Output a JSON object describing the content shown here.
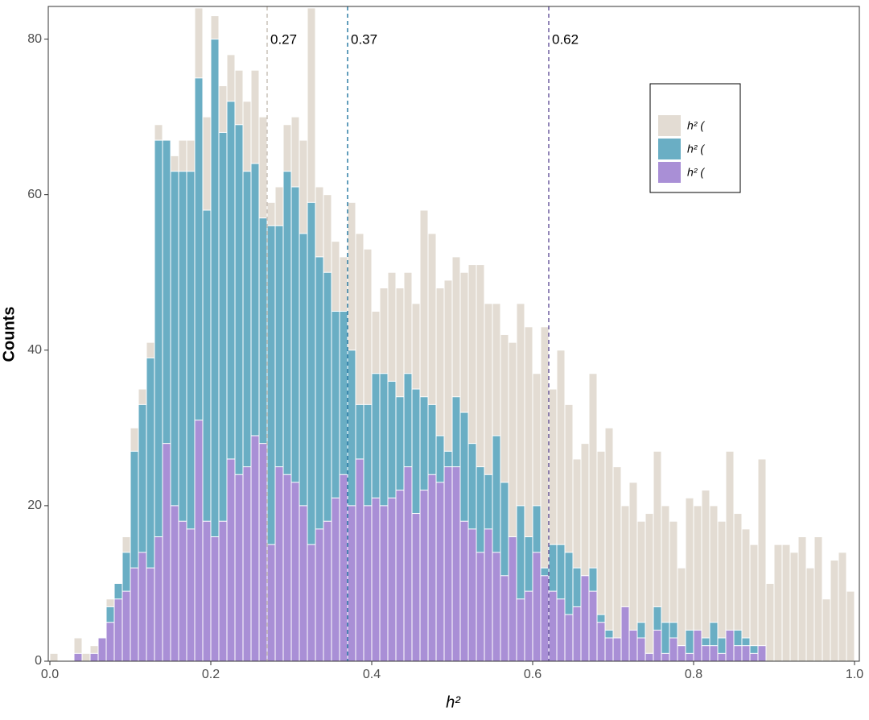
{
  "chart_data": {
    "type": "histogram",
    "x_label": "h²",
    "y_label": "Counts",
    "bins": [
      0,
      0.01,
      0.02,
      0.03,
      0.04,
      0.05,
      0.06,
      0.07,
      0.08,
      0.09,
      0.1,
      0.11,
      0.12,
      0.13,
      0.14,
      0.15,
      0.16,
      0.17,
      0.18,
      0.19,
      0.2,
      0.21,
      0.22,
      0.23,
      0.24,
      0.25,
      0.26,
      0.27,
      0.28,
      0.29,
      0.3,
      0.31,
      0.32,
      0.33,
      0.34,
      0.35,
      0.36,
      0.37,
      0.38,
      0.39,
      0.4,
      0.41,
      0.42,
      0.43,
      0.44,
      0.45,
      0.46,
      0.47,
      0.48,
      0.49,
      0.5,
      0.51,
      0.52,
      0.53,
      0.54,
      0.55,
      0.56,
      0.57,
      0.58,
      0.59,
      0.6,
      0.61,
      0.62,
      0.63,
      0.64,
      0.65,
      0.66,
      0.67,
      0.68,
      0.69,
      0.7,
      0.71,
      0.72,
      0.73,
      0.74,
      0.75,
      0.76,
      0.77,
      0.78,
      0.79,
      0.8,
      0.81,
      0.82,
      0.83,
      0.84,
      0.85,
      0.86,
      0.87,
      0.88,
      0.89,
      0.9,
      0.91,
      0.92,
      0.93,
      0.94,
      0.95,
      0.96,
      0.97,
      0.98,
      0.99,
      1
    ],
    "series": [
      {
        "name": "h² (",
        "color": "#e3dcd3",
        "line_color": "#c9c2b9",
        "vline": 0.27,
        "values": [
          1,
          0,
          0,
          3,
          1,
          2,
          3,
          8,
          10,
          16,
          30,
          35,
          41,
          69,
          67,
          65,
          67,
          67,
          84,
          70,
          83,
          74,
          78,
          76,
          72,
          76,
          70,
          59,
          61,
          69,
          70,
          67,
          84,
          61,
          60,
          54,
          52,
          59,
          55,
          53,
          45,
          48,
          50,
          48,
          50,
          46,
          58,
          55,
          48,
          49,
          52,
          50,
          51,
          51,
          46,
          46,
          42,
          41,
          46,
          43,
          37,
          43,
          35,
          40,
          33,
          26,
          28,
          37,
          27,
          30,
          25,
          20,
          23,
          18,
          19,
          27,
          20,
          18,
          12,
          21,
          20,
          22,
          20,
          18,
          27,
          19,
          17,
          15,
          26,
          10,
          15,
          15,
          14,
          16,
          12,
          16,
          8,
          13,
          14,
          9
        ]
      },
      {
        "name": "h² (",
        "color": "#6aaec4",
        "line_color": "#2e7fa6",
        "vline": 0.37,
        "values": [
          0,
          0,
          0,
          0,
          0,
          0,
          0,
          7,
          10,
          14,
          27,
          33,
          39,
          67,
          67,
          63,
          63,
          63,
          75,
          58,
          80,
          68,
          72,
          69,
          63,
          64,
          57,
          56,
          56,
          63,
          61,
          55,
          59,
          52,
          50,
          45,
          45,
          40,
          33,
          33,
          37,
          37,
          36,
          34,
          37,
          35,
          34,
          33,
          29,
          27,
          34,
          32,
          28,
          25,
          24,
          29,
          23,
          15,
          20,
          16,
          20,
          12,
          15,
          15,
          14,
          12,
          11,
          12,
          6,
          4,
          1,
          5,
          0,
          5,
          1,
          7,
          5,
          5,
          2,
          4,
          2,
          3,
          5,
          3,
          2,
          4,
          3,
          2,
          0,
          0,
          0,
          0,
          0,
          0,
          0,
          0,
          0,
          0,
          0,
          0
        ]
      },
      {
        "name": "h² (",
        "color": "#a98fd6",
        "line_color": "#6f5fa0",
        "vline": 0.62,
        "values": [
          0,
          0,
          0,
          1,
          0,
          1,
          3,
          5,
          8,
          9,
          12,
          14,
          12,
          16,
          28,
          20,
          18,
          17,
          31,
          18,
          16,
          18,
          26,
          24,
          25,
          29,
          28,
          15,
          25,
          24,
          23,
          20,
          15,
          17,
          18,
          21,
          24,
          20,
          26,
          20,
          21,
          20,
          21,
          22,
          25,
          19,
          22,
          24,
          23,
          25,
          25,
          18,
          17,
          14,
          17,
          14,
          11,
          16,
          8,
          9,
          14,
          11,
          9,
          8,
          6,
          7,
          11,
          9,
          5,
          3,
          3,
          7,
          4,
          3,
          1,
          4,
          1,
          3,
          2,
          1,
          4,
          2,
          2,
          1,
          4,
          2,
          2,
          1,
          2,
          0,
          0,
          0,
          0,
          0,
          0,
          0,
          0,
          0,
          0,
          0
        ]
      }
    ],
    "xlim": [
      -0.002,
      1.006
    ],
    "ylim": [
      0,
      84.2
    ],
    "xticks": [
      {
        "value": 0,
        "label": "0.0"
      },
      0.2,
      0.4,
      0.6,
      0.8,
      {
        "value": 1,
        "label": "1.0"
      }
    ],
    "yticks": [
      0,
      20,
      40,
      60,
      80
    ],
    "grid": false
  }
}
